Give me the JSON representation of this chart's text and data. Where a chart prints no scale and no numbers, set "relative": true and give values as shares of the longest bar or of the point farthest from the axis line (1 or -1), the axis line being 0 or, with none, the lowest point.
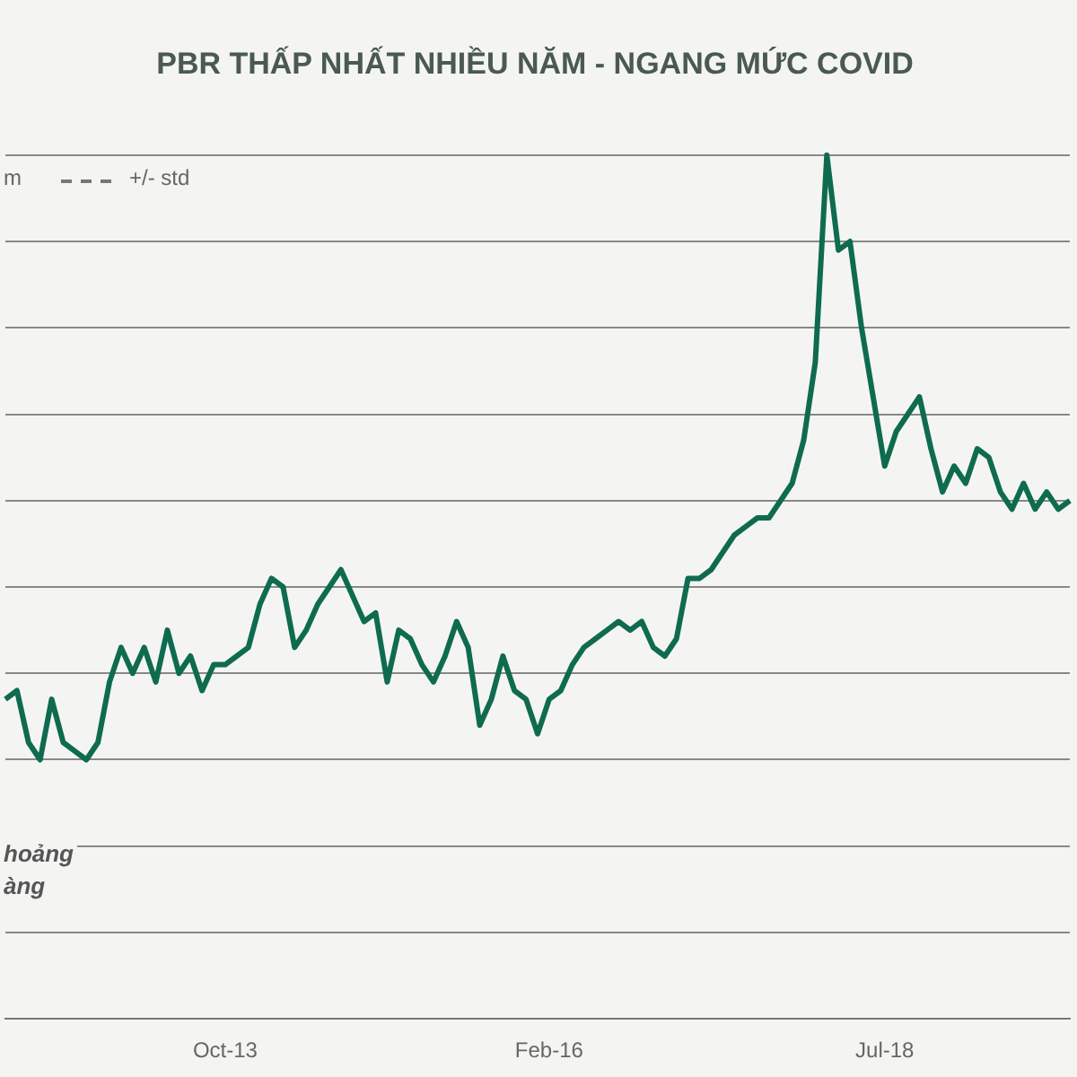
{
  "chart_data": {
    "type": "line",
    "title": "PBR THẤP NHẤT NHIỀU NĂM - NGANG MỨC COVID",
    "relative": true,
    "grid": "y",
    "marker": "none",
    "line_style": "solid",
    "categories": [
      null,
      null,
      null,
      null,
      null,
      null,
      null,
      null,
      null,
      null,
      null,
      null,
      null,
      null,
      null,
      null,
      null,
      null,
      null,
      "Oct-13",
      null,
      null,
      null,
      null,
      null,
      null,
      null,
      null,
      null,
      null,
      null,
      null,
      null,
      null,
      null,
      null,
      null,
      null,
      null,
      null,
      null,
      null,
      null,
      null,
      null,
      null,
      null,
      "Feb-16",
      null,
      null,
      null,
      null,
      null,
      null,
      null,
      null,
      null,
      null,
      null,
      null,
      null,
      null,
      null,
      null,
      null,
      null,
      null,
      null,
      null,
      null,
      null,
      null,
      null,
      null,
      null,
      null,
      "Jul-18",
      null,
      null,
      null,
      null,
      null,
      null,
      null,
      null,
      null,
      null,
      null,
      null,
      null,
      null,
      null,
      null
    ],
    "series": [
      {
        "color": "#0f6b4f",
        "values": [
          0.37,
          0.38,
          0.32,
          0.3,
          0.37,
          0.32,
          0.31,
          0.3,
          0.32,
          0.39,
          0.43,
          0.4,
          0.43,
          0.39,
          0.45,
          0.4,
          0.42,
          0.38,
          0.41,
          0.41,
          0.42,
          0.43,
          0.48,
          0.51,
          0.5,
          0.43,
          0.45,
          0.48,
          0.5,
          0.52,
          0.49,
          0.46,
          0.47,
          0.39,
          0.45,
          0.44,
          0.41,
          0.39,
          0.42,
          0.46,
          0.43,
          0.34,
          0.37,
          0.42,
          0.38,
          0.37,
          0.33,
          0.37,
          0.38,
          0.41,
          0.43,
          0.44,
          0.45,
          0.46,
          0.45,
          0.46,
          0.43,
          0.42,
          0.44,
          0.51,
          0.51,
          0.52,
          0.54,
          0.56,
          0.57,
          0.58,
          0.58,
          0.6,
          0.62,
          0.67,
          0.76,
          1,
          0.89,
          0.9,
          0.8,
          0.72,
          0.64,
          0.68,
          0.7,
          0.72,
          0.66,
          0.61,
          0.64,
          0.62,
          0.66,
          0.65,
          0.61,
          0.59,
          0.62,
          0.59,
          0.61,
          0.59,
          0.6
        ]
      }
    ],
    "annotations": [
      "m",
      "+/- std",
      "hoảng",
      "àng"
    ]
  }
}
